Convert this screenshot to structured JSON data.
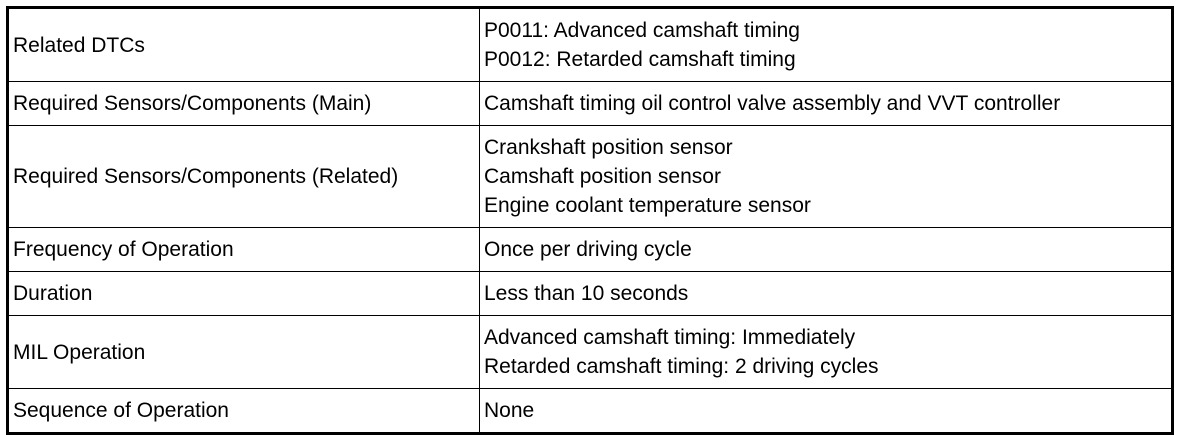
{
  "table": {
    "rows": [
      {
        "label": "Related DTCs",
        "lines": [
          "P0011: Advanced camshaft timing",
          "P0012: Retarded camshaft timing"
        ]
      },
      {
        "label": "Required Sensors/Components (Main)",
        "lines": [
          "Camshaft timing oil control valve assembly and VVT controller"
        ]
      },
      {
        "label": "Required Sensors/Components (Related)",
        "lines": [
          "Crankshaft position sensor",
          "Camshaft position sensor",
          "Engine coolant temperature sensor"
        ]
      },
      {
        "label": "Frequency of Operation",
        "lines": [
          "Once per driving cycle"
        ]
      },
      {
        "label": "Duration",
        "lines": [
          "Less than 10 seconds"
        ]
      },
      {
        "label": "MIL Operation",
        "lines": [
          "Advanced camshaft timing: Immediately",
          "Retarded camshaft timing: 2 driving cycles"
        ]
      },
      {
        "label": "Sequence of Operation",
        "lines": [
          "None"
        ]
      }
    ]
  }
}
